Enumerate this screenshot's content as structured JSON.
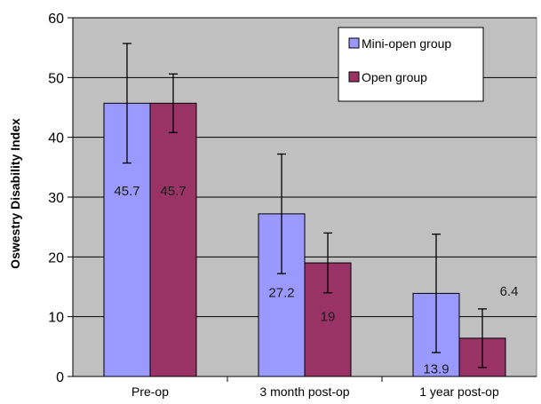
{
  "chart_data": {
    "type": "bar",
    "title": "",
    "xlabel": "",
    "ylabel": "Oswestry Disability Index",
    "ylim": [
      0,
      60
    ],
    "yticks": [
      0,
      10,
      20,
      30,
      40,
      50,
      60
    ],
    "grid": true,
    "legend_position": "top-right",
    "categories": [
      "Pre-op",
      "3 month post-op",
      "1 year post-op"
    ],
    "series": [
      {
        "name": "Mini-open group",
        "color": "#9999FF",
        "values": [
          45.7,
          27.2,
          13.9
        ],
        "value_labels": [
          "45.7",
          "27.2",
          "13.9"
        ],
        "error_low": [
          35.7,
          17.2,
          4.0
        ],
        "error_high": [
          55.7,
          37.2,
          23.8
        ]
      },
      {
        "name": "Open group",
        "color": "#993366",
        "values": [
          45.7,
          19,
          6.4
        ],
        "value_labels": [
          "45.7",
          "19",
          "6.4"
        ],
        "error_low": [
          40.8,
          14.0,
          1.5
        ],
        "error_high": [
          50.6,
          24.0,
          11.3
        ]
      }
    ],
    "colors": {
      "plot_background": "#C0C0C0",
      "gridline": "#000000",
      "label_text": "#1a1a1a",
      "legend_background": "#FFFFFF"
    }
  }
}
